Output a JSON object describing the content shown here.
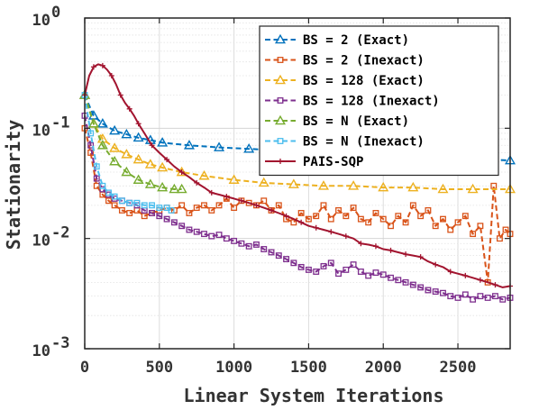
{
  "chart_data": {
    "type": "line",
    "x_label": "Linear System Iterations",
    "y_label": "Stationarity",
    "x_lim": [
      0,
      2850
    ],
    "y_lim": [
      0.001,
      1
    ],
    "y_scale": "log",
    "grid": true,
    "legend_position": "top-right",
    "x_ticks": [
      {
        "value": 0,
        "label": "0"
      },
      {
        "value": 500,
        "label": "500"
      },
      {
        "value": 1000,
        "label": "1000"
      },
      {
        "value": 1500,
        "label": "1500"
      },
      {
        "value": 2000,
        "label": "2000"
      },
      {
        "value": 2500,
        "label": "2500"
      }
    ],
    "y_ticks": [
      {
        "value": 1,
        "base": "10",
        "exp": "0"
      },
      {
        "value": 0.1,
        "base": "10",
        "exp": "-1"
      },
      {
        "value": 0.01,
        "base": "10",
        "exp": "-2"
      },
      {
        "value": 0.001,
        "base": "10",
        "exp": "-3"
      }
    ],
    "series": [
      {
        "name": "BS = 2 (Exact)",
        "color": "#0072BD",
        "dash": "dashed",
        "marker": "triangle",
        "x": [
          0,
          60,
          120,
          200,
          280,
          360,
          440,
          520,
          700,
          900,
          1100,
          1300,
          1500,
          1700,
          1900,
          2100,
          2300,
          2500,
          2700,
          2850
        ],
        "y": [
          0.2,
          0.13,
          0.11,
          0.095,
          0.088,
          0.082,
          0.078,
          0.074,
          0.07,
          0.067,
          0.065,
          0.063,
          0.061,
          0.06,
          0.058,
          0.056,
          0.055,
          0.054,
          0.052,
          0.051
        ]
      },
      {
        "name": "BS = 2 (Inexact)",
        "color": "#D95319",
        "dash": "dashed",
        "marker": "square",
        "x": [
          0,
          40,
          80,
          120,
          160,
          200,
          250,
          300,
          350,
          400,
          450,
          500,
          550,
          600,
          650,
          700,
          750,
          800,
          850,
          900,
          950,
          1000,
          1050,
          1100,
          1150,
          1200,
          1250,
          1300,
          1350,
          1400,
          1450,
          1500,
          1550,
          1600,
          1650,
          1700,
          1750,
          1800,
          1850,
          1900,
          1950,
          2000,
          2050,
          2100,
          2150,
          2200,
          2250,
          2300,
          2350,
          2400,
          2450,
          2500,
          2550,
          2600,
          2650,
          2700,
          2740,
          2780,
          2820,
          2850
        ],
        "y": [
          0.1,
          0.06,
          0.03,
          0.025,
          0.022,
          0.02,
          0.018,
          0.017,
          0.018,
          0.016,
          0.017,
          0.018,
          0.019,
          0.018,
          0.02,
          0.017,
          0.019,
          0.02,
          0.018,
          0.02,
          0.023,
          0.019,
          0.022,
          0.021,
          0.02,
          0.022,
          0.018,
          0.02,
          0.015,
          0.014,
          0.017,
          0.015,
          0.016,
          0.02,
          0.015,
          0.018,
          0.016,
          0.019,
          0.015,
          0.014,
          0.017,
          0.015,
          0.013,
          0.016,
          0.014,
          0.02,
          0.016,
          0.018,
          0.013,
          0.015,
          0.012,
          0.014,
          0.016,
          0.011,
          0.013,
          0.004,
          0.03,
          0.01,
          0.012,
          0.011
        ]
      },
      {
        "name": "BS = 128 (Exact)",
        "color": "#EDB120",
        "dash": "dashed",
        "marker": "triangle",
        "x": [
          0,
          60,
          120,
          200,
          280,
          360,
          440,
          520,
          650,
          800,
          1000,
          1200,
          1400,
          1600,
          1800,
          2000,
          2200,
          2400,
          2600,
          2850
        ],
        "y": [
          0.2,
          0.11,
          0.08,
          0.066,
          0.058,
          0.052,
          0.047,
          0.044,
          0.04,
          0.037,
          0.034,
          0.032,
          0.031,
          0.03,
          0.03,
          0.029,
          0.029,
          0.028,
          0.028,
          0.028
        ]
      },
      {
        "name": "BS = 128 (Inexact)",
        "color": "#7E2F8E",
        "dash": "dashed",
        "marker": "square",
        "x": [
          0,
          40,
          80,
          120,
          160,
          200,
          250,
          300,
          350,
          400,
          450,
          500,
          550,
          600,
          650,
          700,
          750,
          800,
          850,
          900,
          950,
          1000,
          1050,
          1100,
          1150,
          1200,
          1250,
          1300,
          1350,
          1400,
          1450,
          1500,
          1550,
          1600,
          1650,
          1700,
          1750,
          1800,
          1850,
          1900,
          1950,
          2000,
          2050,
          2100,
          2150,
          2200,
          2250,
          2300,
          2350,
          2400,
          2450,
          2500,
          2550,
          2600,
          2650,
          2700,
          2750,
          2800,
          2850
        ],
        "y": [
          0.13,
          0.07,
          0.035,
          0.028,
          0.025,
          0.023,
          0.022,
          0.021,
          0.02,
          0.018,
          0.017,
          0.016,
          0.015,
          0.014,
          0.013,
          0.012,
          0.0115,
          0.011,
          0.0105,
          0.0108,
          0.01,
          0.0095,
          0.009,
          0.0085,
          0.0088,
          0.008,
          0.0075,
          0.007,
          0.0065,
          0.006,
          0.0055,
          0.0052,
          0.005,
          0.0056,
          0.006,
          0.0048,
          0.0052,
          0.0058,
          0.005,
          0.0046,
          0.0049,
          0.0047,
          0.0044,
          0.0042,
          0.004,
          0.0038,
          0.0036,
          0.0034,
          0.0033,
          0.0032,
          0.003,
          0.0029,
          0.0031,
          0.0028,
          0.003,
          0.0029,
          0.003,
          0.0028,
          0.0029
        ]
      },
      {
        "name": "BS = N (Exact)",
        "color": "#77AC30",
        "dash": "dashed",
        "marker": "triangle",
        "x": [
          0,
          60,
          120,
          200,
          280,
          360,
          440,
          520,
          600,
          650
        ],
        "y": [
          0.2,
          0.11,
          0.07,
          0.05,
          0.04,
          0.034,
          0.031,
          0.029,
          0.028,
          0.028
        ]
      },
      {
        "name": "BS = N (Inexact)",
        "color": "#4DBEEE",
        "dash": "dashed",
        "marker": "square",
        "x": [
          0,
          40,
          80,
          120,
          160,
          200,
          250,
          300,
          350,
          400,
          450,
          500,
          550,
          580
        ],
        "y": [
          0.2,
          0.09,
          0.045,
          0.03,
          0.026,
          0.024,
          0.022,
          0.021,
          0.021,
          0.02,
          0.02,
          0.019,
          0.019,
          0.018
        ]
      },
      {
        "name": "PAIS-SQP",
        "color": "#A2142F",
        "dash": "solid",
        "marker": "plus",
        "x": [
          0,
          30,
          60,
          90,
          120,
          150,
          180,
          210,
          240,
          270,
          300,
          330,
          360,
          400,
          450,
          500,
          550,
          600,
          650,
          700,
          750,
          800,
          850,
          900,
          950,
          1000,
          1050,
          1100,
          1150,
          1200,
          1250,
          1300,
          1350,
          1400,
          1450,
          1500,
          1550,
          1600,
          1650,
          1700,
          1750,
          1800,
          1850,
          1900,
          1950,
          2000,
          2050,
          2100,
          2150,
          2200,
          2250,
          2300,
          2350,
          2400,
          2450,
          2500,
          2550,
          2600,
          2650,
          2700,
          2750,
          2800,
          2850
        ],
        "y": [
          0.2,
          0.3,
          0.36,
          0.38,
          0.37,
          0.34,
          0.3,
          0.25,
          0.2,
          0.17,
          0.15,
          0.13,
          0.11,
          0.09,
          0.07,
          0.06,
          0.052,
          0.045,
          0.04,
          0.036,
          0.032,
          0.029,
          0.026,
          0.025,
          0.024,
          0.023,
          0.022,
          0.021,
          0.02,
          0.019,
          0.018,
          0.017,
          0.016,
          0.015,
          0.014,
          0.013,
          0.0125,
          0.012,
          0.0115,
          0.011,
          0.0105,
          0.01,
          0.009,
          0.0088,
          0.0085,
          0.008,
          0.0078,
          0.0075,
          0.0072,
          0.007,
          0.0068,
          0.0062,
          0.0058,
          0.0055,
          0.005,
          0.0048,
          0.0046,
          0.0044,
          0.0042,
          0.004,
          0.0038,
          0.0036,
          0.0037
        ]
      }
    ]
  }
}
